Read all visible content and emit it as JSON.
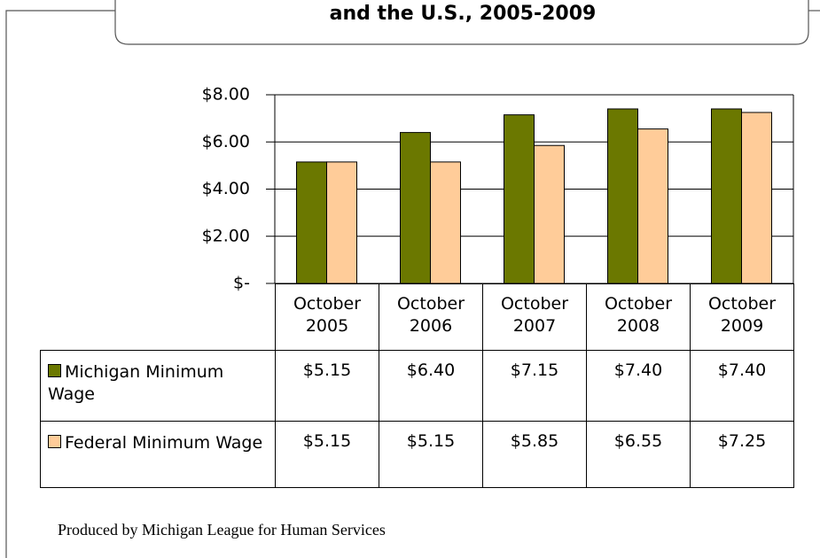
{
  "chart_data": {
    "type": "bar",
    "title": "and the U.S., 2005-2009",
    "categories": [
      "October 2005",
      "October 2006",
      "October 2007",
      "October 2008",
      "October 2009"
    ],
    "series": [
      {
        "name": "Michigan Minimum Wage",
        "color": "#6b7800",
        "values": [
          5.15,
          6.4,
          7.15,
          7.4,
          7.4
        ],
        "value_labels": [
          "$5.15",
          "$6.40",
          "$7.15",
          "$7.40",
          "$7.40"
        ]
      },
      {
        "name": "Federal Minimum Wage",
        "color": "#ffcc99",
        "values": [
          5.15,
          5.15,
          5.85,
          6.55,
          7.25
        ],
        "value_labels": [
          "$5.15",
          "$5.15",
          "$5.85",
          "$6.55",
          "$7.25"
        ]
      }
    ],
    "ylim": [
      0,
      8
    ],
    "yticks": [
      {
        "value": 0,
        "label": "$-"
      },
      {
        "value": 2,
        "label": "$2.00"
      },
      {
        "value": 4,
        "label": "$4.00"
      },
      {
        "value": 6,
        "label": "$6.00"
      },
      {
        "value": 8,
        "label": "$8.00"
      }
    ],
    "grid": true,
    "footer": "Produced by Michigan League for Human Services"
  }
}
